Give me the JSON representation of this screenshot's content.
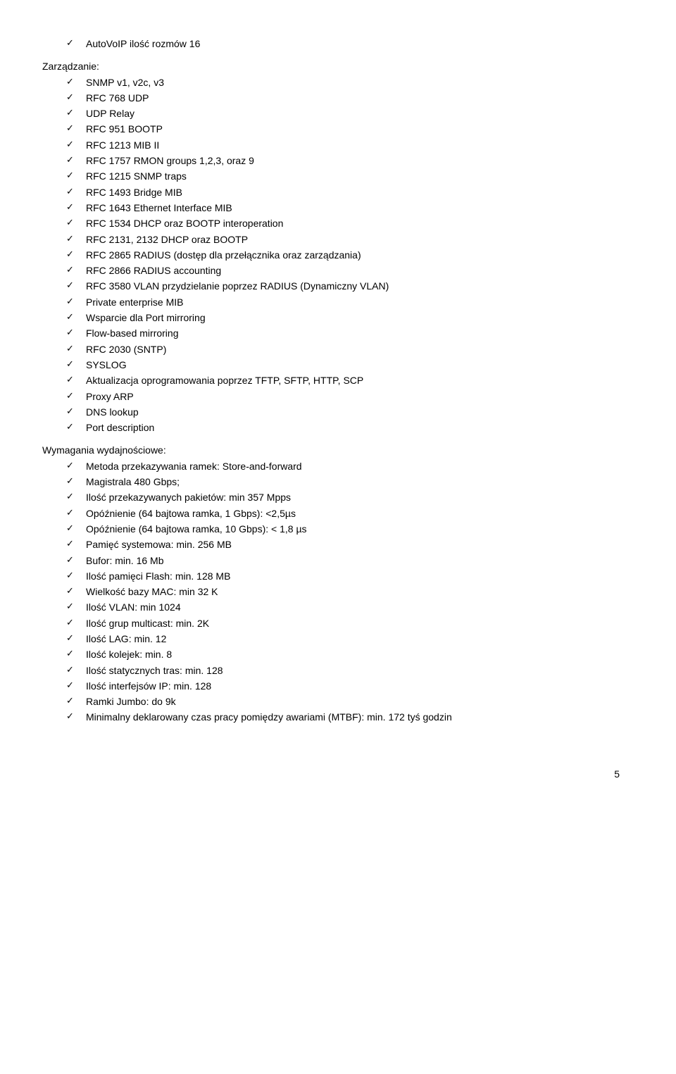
{
  "checkIcon": "✓",
  "topItems": [
    "AutoVoIP  ilość rozmów 16"
  ],
  "sections": [
    {
      "heading": "Zarządzanie:",
      "items": [
        "SNMP v1, v2c, v3",
        "RFC 768 UDP",
        "UDP Relay",
        "RFC 951 BOOTP",
        "RFC 1213 MIB II",
        "RFC 1757 RMON groups 1,2,3, oraz 9",
        "RFC 1215 SNMP traps",
        "RFC 1493 Bridge MIB",
        "RFC 1643 Ethernet Interface MIB",
        "RFC 1534 DHCP oraz BOOTP interoperation",
        "RFC 2131, 2132 DHCP oraz BOOTP",
        "RFC 2865 RADIUS (dostęp dla przełącznika oraz zarządzania)",
        "RFC 2866 RADIUS accounting",
        "RFC 3580 VLAN przydzielanie poprzez RADIUS (Dynamiczny VLAN)",
        "Private enterprise MIB",
        "Wsparcie dla Port mirroring",
        "Flow-based mirroring",
        "RFC 2030 (SNTP)",
        "SYSLOG",
        "Aktualizacja oprogramowania poprzez TFTP, SFTP, HTTP, SCP",
        "Proxy ARP",
        "DNS lookup",
        "Port description"
      ]
    },
    {
      "heading": "Wymagania wydajnościowe:",
      "items": [
        "Metoda przekazywania ramek: Store-and-forward",
        "Magistrala 480 Gbps;",
        "Ilość przekazywanych pakietów: min 357 Mpps",
        "Opóźnienie (64 bajtowa ramka, 1 Gbps): <2,5µs",
        "Opóźnienie (64 bajtowa ramka, 10 Gbps): < 1,8 µs",
        "Pamięć systemowa: min. 256 MB",
        "Bufor: min. 16 Mb",
        "Ilość pamięci Flash: min. 128 MB",
        "Wielkość bazy MAC: min 32 K",
        "Ilość VLAN: min 1024",
        "Ilość grup multicast: min. 2K",
        "Ilość LAG: min. 12",
        "Ilość kolejek: min. 8",
        "Ilość statycznych tras: min. 128",
        "Ilość interfejsów IP: min. 128",
        "Ramki Jumbo: do 9k",
        "Minimalny deklarowany czas pracy pomiędzy awariami (MTBF):  min. 172 tyś godzin"
      ]
    }
  ],
  "pageNumber": "5"
}
